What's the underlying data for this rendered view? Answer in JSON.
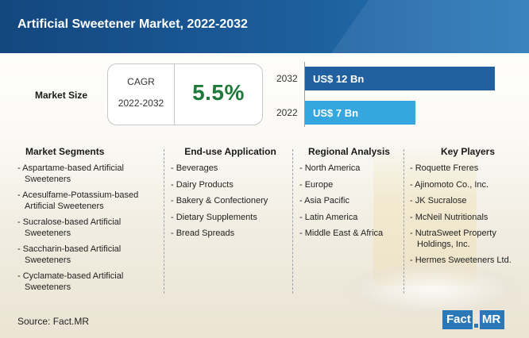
{
  "title": "Artificial Sweetener Market, 2022-2032",
  "market_size": {
    "label": "Market Size",
    "cagr_label": "CAGR",
    "cagr_period": "2022-2032",
    "cagr_value": "5.5%"
  },
  "colors": {
    "bar_2032": "#2160a0",
    "bar_2022": "#36a6df",
    "cagr_value": "#1f7a3a",
    "header": "#1a5590"
  },
  "chart_data": {
    "type": "bar",
    "orientation": "horizontal",
    "categories": [
      "2032",
      "2022"
    ],
    "values": [
      12,
      7
    ],
    "value_labels": [
      "US$ 12 Bn",
      "US$ 7 Bn"
    ],
    "xlim": [
      0,
      12
    ],
    "title": "",
    "xlabel": "",
    "ylabel": ""
  },
  "columns": [
    {
      "title": "Market Segments",
      "items": [
        "- Aspartame-based Artificial Sweeteners",
        "- Acesulfame-Potassium-based Artificial Sweeteners",
        "- Sucralose-based Artificial Sweeteners",
        "- Saccharin-based Artificial Sweeteners",
        "- Cyclamate-based Artificial Sweeteners"
      ]
    },
    {
      "title": "End-use Application",
      "items": [
        "- Beverages",
        "- Dairy Products",
        "- Bakery & Confectionery",
        "- Dietary Supplements",
        "- Bread Spreads"
      ]
    },
    {
      "title": "Regional Analysis",
      "items": [
        "- North America",
        "- Europe",
        "- Asia Pacific",
        "- Latin America",
        "- Middle East & Africa"
      ]
    },
    {
      "title": "Key Players",
      "items": [
        "- Roquette Freres",
        "- Ajinomoto Co., Inc.",
        "- JK Sucralose",
        "- McNeil Nutritionals",
        "- NutraSweet Property Holdings, Inc.",
        "- Hermes Sweeteners Ltd."
      ]
    }
  ],
  "source": "Source: Fact.MR",
  "logo": {
    "part1": "Fact",
    "part2": "MR"
  }
}
